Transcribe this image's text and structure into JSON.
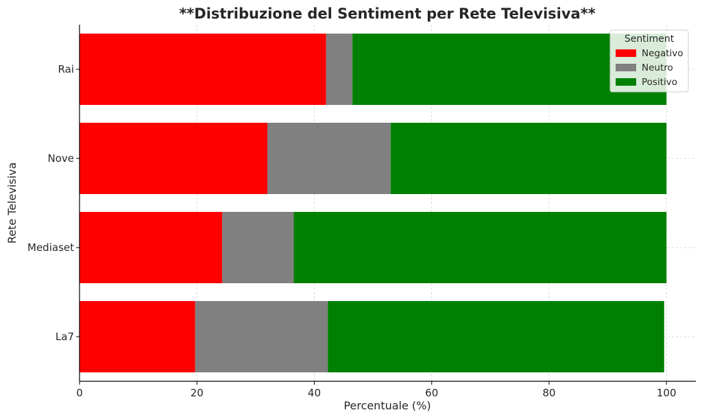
{
  "chart_data": {
    "type": "bar",
    "orientation": "horizontal",
    "stacked": true,
    "title": "**Distribuzione del Sentiment per Rete Televisiva**",
    "xlabel": "Percentuale (%)",
    "ylabel": "Rete Televisiva",
    "xlim": [
      0,
      105
    ],
    "xticks": [
      0,
      20,
      40,
      60,
      80,
      100
    ],
    "categories": [
      "La7",
      "Mediaset",
      "Nove",
      "Rai"
    ],
    "series": [
      {
        "name": "Negativo",
        "color": "#ff0000",
        "values": [
          19.7,
          24.3,
          32.0,
          42.0
        ]
      },
      {
        "name": "Neutro",
        "color": "#808080",
        "values": [
          22.6,
          12.2,
          21.0,
          4.5
        ]
      },
      {
        "name": "Positivo",
        "color": "#008000",
        "values": [
          57.3,
          63.5,
          47.0,
          53.5
        ]
      }
    ],
    "legend": {
      "title": "Sentiment",
      "position": "top-right"
    },
    "grid": true
  }
}
